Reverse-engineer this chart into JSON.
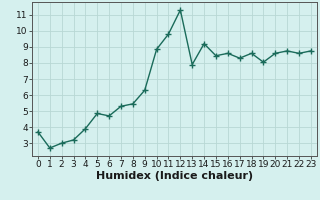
{
  "x": [
    0,
    1,
    2,
    3,
    4,
    5,
    6,
    7,
    8,
    9,
    10,
    11,
    12,
    13,
    14,
    15,
    16,
    17,
    18,
    19,
    20,
    21,
    22,
    23
  ],
  "y": [
    3.7,
    2.7,
    3.0,
    3.2,
    3.9,
    4.85,
    4.7,
    5.3,
    5.45,
    6.3,
    8.85,
    9.8,
    11.3,
    7.9,
    9.2,
    8.45,
    8.6,
    8.3,
    8.6,
    8.05,
    8.6,
    8.75,
    8.6,
    8.75
  ],
  "line_color": "#1a6b5a",
  "marker": "+",
  "markersize": 4,
  "linewidth": 1.0,
  "markeredgewidth": 1.0,
  "xlabel": "Humidex (Indice chaleur)",
  "xlim": [
    -0.5,
    23.5
  ],
  "ylim": [
    2.2,
    11.8
  ],
  "yticks": [
    3,
    4,
    5,
    6,
    7,
    8,
    9,
    10,
    11
  ],
  "xticks": [
    0,
    1,
    2,
    3,
    4,
    5,
    6,
    7,
    8,
    9,
    10,
    11,
    12,
    13,
    14,
    15,
    16,
    17,
    18,
    19,
    20,
    21,
    22,
    23
  ],
  "bg_color": "#d5f0ee",
  "grid_color": "#b8d8d4",
  "tick_fontsize": 6.5,
  "xlabel_fontsize": 8
}
